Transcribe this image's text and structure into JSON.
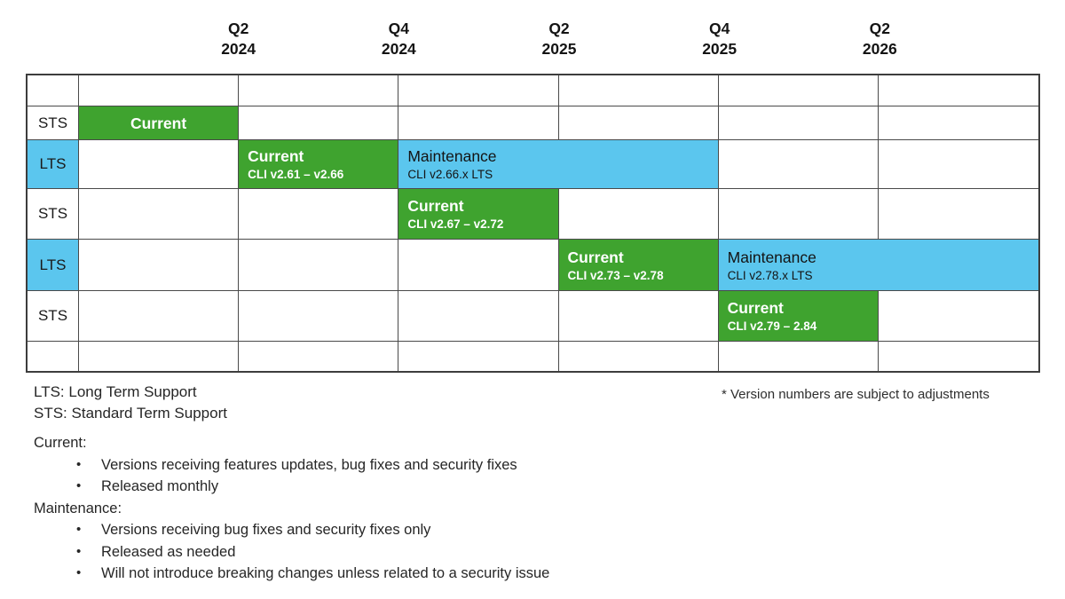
{
  "colors": {
    "current_green": "#3FA32F",
    "maintenance_blue": "#5BC6EE",
    "grid_line": "#4a4a4a"
  },
  "timeline": {
    "quarter_ticks": [
      {
        "quarter": "Q2",
        "year": "2024"
      },
      {
        "quarter": "Q4",
        "year": "2024"
      },
      {
        "quarter": "Q2",
        "year": "2025"
      },
      {
        "quarter": "Q4",
        "year": "2025"
      },
      {
        "quarter": "Q2",
        "year": "2026"
      }
    ],
    "columns": 6,
    "rows": [
      {
        "label": "",
        "kind": "spacer",
        "bars": []
      },
      {
        "label": "STS",
        "kind": "sts",
        "bars": [
          {
            "type": "current",
            "title": "Current",
            "subtitle": "",
            "start_col": 1,
            "span": 1,
            "text_align": "center"
          }
        ]
      },
      {
        "label": "LTS",
        "kind": "lts",
        "bars": [
          {
            "type": "current",
            "title": "Current",
            "subtitle": "CLI v2.61 – v2.66",
            "start_col": 2,
            "span": 1
          },
          {
            "type": "maintenance",
            "title": "Maintenance",
            "subtitle": "CLI v2.66.x LTS",
            "start_col": 3,
            "span": 2
          }
        ]
      },
      {
        "label": "STS",
        "kind": "sts",
        "bars": [
          {
            "type": "current",
            "title": "Current",
            "subtitle": "CLI v2.67 – v2.72",
            "start_col": 3,
            "span": 1
          }
        ]
      },
      {
        "label": "LTS",
        "kind": "lts",
        "bars": [
          {
            "type": "current",
            "title": "Current",
            "subtitle": "CLI v2.73 – v2.78",
            "start_col": 4,
            "span": 1
          },
          {
            "type": "maintenance",
            "title": "Maintenance",
            "subtitle": "CLI v2.78.x LTS",
            "start_col": 5,
            "span": 2
          }
        ]
      },
      {
        "label": "STS",
        "kind": "sts",
        "bars": [
          {
            "type": "current",
            "title": "Current",
            "subtitle": "CLI v2.79 – 2.84",
            "start_col": 5,
            "span": 1
          }
        ]
      },
      {
        "label": "",
        "kind": "spacer",
        "bars": []
      }
    ]
  },
  "legend": {
    "abbreviations": [
      "LTS: Long Term Support",
      "STS: Standard Term Support"
    ],
    "sections": [
      {
        "heading": "Current:",
        "bullets": [
          "Versions receiving features updates, bug fixes and security fixes",
          "Released monthly"
        ]
      },
      {
        "heading": "Maintenance:",
        "bullets": [
          "Versions receiving bug fixes and security fixes only",
          "Released as needed",
          "Will not introduce breaking changes unless related to a security issue"
        ]
      }
    ]
  },
  "footnote": "* Version numbers are subject to adjustments",
  "chart_data": {
    "type": "bar",
    "variant": "gantt_release_timeline",
    "title": "",
    "x_ticks": [
      "Q2 2024",
      "Q4 2024",
      "Q2 2025",
      "Q4 2025",
      "Q2 2026"
    ],
    "x_note": "6 equal half-year columns; ticks mark column boundaries",
    "grid": true,
    "legend_colors": {
      "Current": "#3FA32F",
      "Maintenance": "#5BC6EE"
    },
    "rows": [
      {
        "track": "STS",
        "phases": [
          {
            "phase": "Current",
            "versions": "",
            "from": "timeline start",
            "to": "Q2 2024"
          }
        ]
      },
      {
        "track": "LTS",
        "phases": [
          {
            "phase": "Current",
            "versions": "CLI v2.61 – v2.66",
            "from": "Q2 2024",
            "to": "Q4 2024"
          },
          {
            "phase": "Maintenance",
            "versions": "CLI v2.66.x LTS",
            "from": "Q4 2024",
            "to": "Q4 2025"
          }
        ]
      },
      {
        "track": "STS",
        "phases": [
          {
            "phase": "Current",
            "versions": "CLI v2.67 – v2.72",
            "from": "Q4 2024",
            "to": "Q2 2025"
          }
        ]
      },
      {
        "track": "LTS",
        "phases": [
          {
            "phase": "Current",
            "versions": "CLI v2.73 – v2.78",
            "from": "Q2 2025",
            "to": "Q4 2025"
          },
          {
            "phase": "Maintenance",
            "versions": "CLI v2.78.x LTS",
            "from": "Q4 2025",
            "to": "timeline end"
          }
        ]
      },
      {
        "track": "STS",
        "phases": [
          {
            "phase": "Current",
            "versions": "CLI v2.79 – 2.84",
            "from": "Q4 2025",
            "to": "Q2 2026"
          }
        ]
      }
    ]
  }
}
